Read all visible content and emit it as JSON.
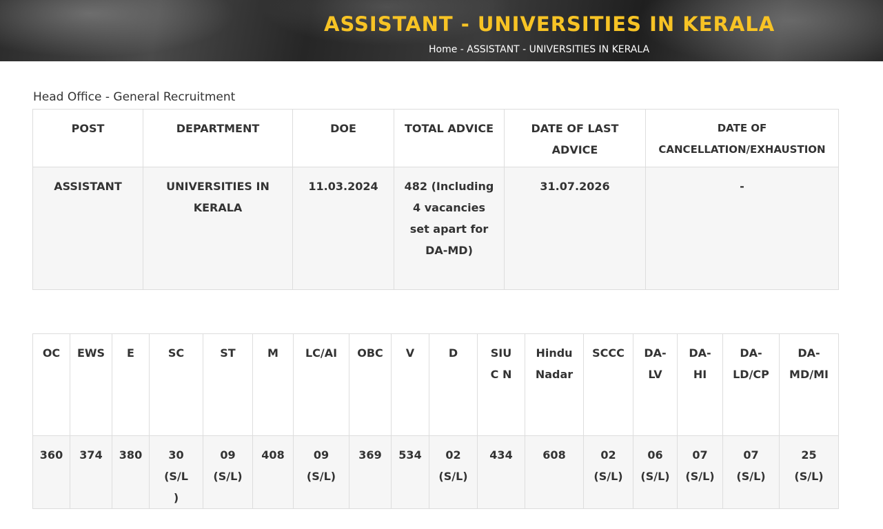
{
  "header": {
    "title": "ASSISTANT - UNIVERSITIES IN KERALA",
    "breadcrumb": {
      "home": "Home",
      "separator": " - ",
      "current": "ASSISTANT - UNIVERSITIES IN KERALA"
    }
  },
  "section_label": "Head Office - General Recruitment",
  "summary_table": {
    "headers": [
      "POST",
      "DEPARTMENT",
      "DOE",
      "TOTAL ADVICE",
      "DATE OF LAST ADVICE",
      "DATE OF CANCELLATION/EXHAUSTION"
    ],
    "row": [
      "ASSISTANT",
      "UNIVERSITIES IN KERALA",
      "11.03.2024",
      "482 (Including 4 vacancies set apart for DA-MD)",
      "31.07.2026",
      "-"
    ]
  },
  "category_table": {
    "headers": [
      "OC",
      "EWS",
      "E",
      "SC",
      "ST",
      "M",
      "LC/AI",
      "OBC",
      "V",
      "D",
      "SIUC N",
      "Hindu Nadar",
      "SCCC",
      "DA-LV",
      "DA-HI",
      "DA-LD/CP",
      "DA-MD/MI"
    ],
    "row": [
      "360",
      "374",
      "380",
      "30 (S/L)",
      "09 (S/L)",
      "408",
      "09 (S/L)",
      "369",
      "534",
      "02 (S/L)",
      "434",
      "608",
      "02 (S/L)",
      "06 (S/L)",
      "07 (S/L)",
      "07 (S/L)",
      "25 (S/L)"
    ]
  },
  "colors": {
    "title_accent": "#f7c325",
    "banner_bg": "#2b2b2b",
    "cell_bg": "#f6f6f6",
    "border": "#dddddd"
  }
}
